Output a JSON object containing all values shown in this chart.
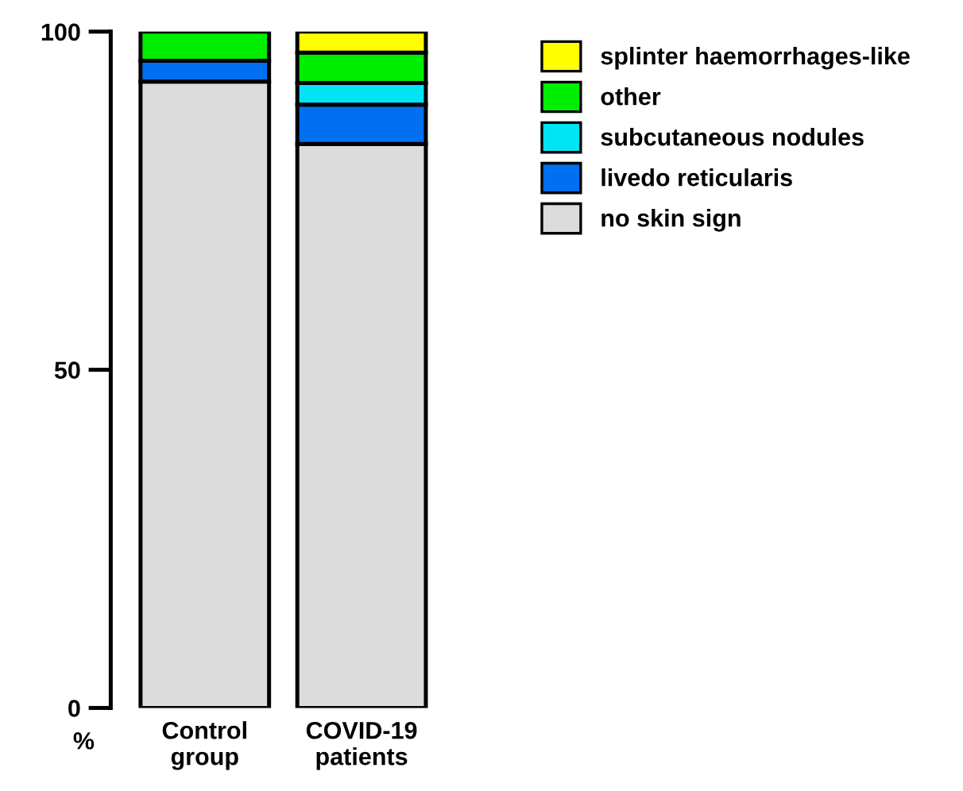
{
  "chart_data": {
    "type": "bar",
    "stacked": true,
    "categories": [
      "Control\ngroup",
      "COVID-19\npatients"
    ],
    "ylabel": "%",
    "ylim": [
      0,
      100
    ],
    "yticks": [
      0,
      50,
      100
    ],
    "legend": "top right",
    "grid": false,
    "series": [
      {
        "name": "no skin sign",
        "color": "#dcdcdc",
        "values": [
          92.6,
          83.4
        ]
      },
      {
        "name": "livedo reticularis",
        "color": "#0070f0",
        "values": [
          3.1,
          5.8
        ]
      },
      {
        "name": "subcutaneous nodules",
        "color": "#00e4f4",
        "values": [
          0,
          3.2
        ]
      },
      {
        "name": "other",
        "color": "#00ee00",
        "values": [
          4.3,
          4.5
        ]
      },
      {
        "name": "splinter haemorrhages-like",
        "color": "#ffff00",
        "values": [
          0,
          3.1
        ]
      }
    ]
  }
}
